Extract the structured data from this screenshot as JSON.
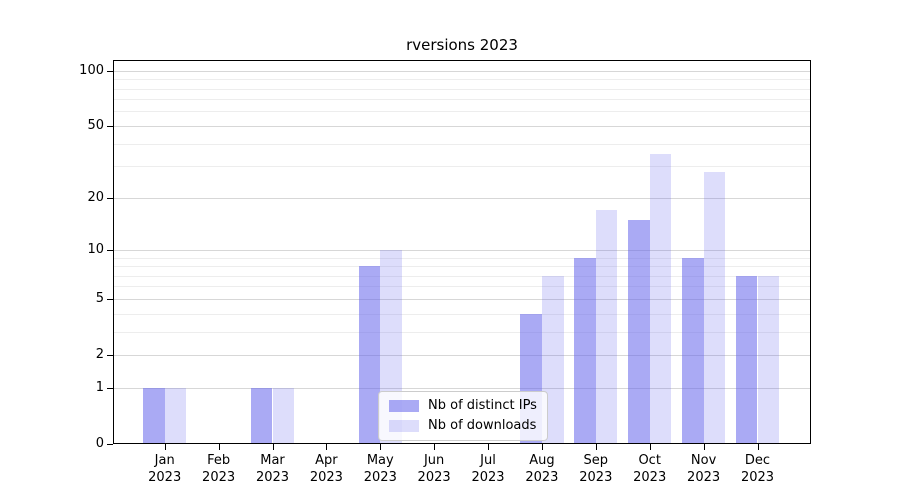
{
  "chart_data": {
    "type": "bar",
    "title": "rversions 2023",
    "categories": [
      "Jan 2023",
      "Feb 2023",
      "Mar 2023",
      "Apr 2023",
      "May 2023",
      "Jun 2023",
      "Jul 2023",
      "Aug 2023",
      "Sep 2023",
      "Oct 2023",
      "Nov 2023",
      "Dec 2023"
    ],
    "category_line1": [
      "Jan",
      "Feb",
      "Mar",
      "Apr",
      "May",
      "Jun",
      "Jul",
      "Aug",
      "Sep",
      "Oct",
      "Nov",
      "Dec"
    ],
    "category_line2": "2023",
    "series": [
      {
        "name": "Nb of distinct IPs",
        "color": "rgba(100,100,235,0.55)",
        "values": [
          1,
          0,
          1,
          0,
          8,
          0,
          0,
          4,
          9,
          15,
          9,
          7
        ]
      },
      {
        "name": "Nb of downloads",
        "color": "rgba(100,100,235,0.22)",
        "values": [
          1,
          0,
          1,
          0,
          10,
          0,
          0,
          7,
          17,
          35,
          28,
          7
        ]
      }
    ],
    "yscale": "log1p",
    "yticks": [
      0,
      1,
      2,
      5,
      10,
      20,
      50,
      100
    ],
    "yticks_minor": [
      3,
      4,
      6,
      7,
      8,
      9,
      30,
      40,
      60,
      70,
      80,
      90
    ],
    "ylim": [
      0,
      114
    ],
    "xlabel": "",
    "ylabel": "",
    "grid": "horizontal",
    "legend_position": "lower center"
  },
  "colors": {
    "bar_base": "#6464eb",
    "grid_major": "#d7d7d7",
    "grid_minor": "#ededed",
    "axis": "#000000",
    "legend_border": "#cccccc",
    "legend_background": "rgba(255,255,255,0.8)"
  }
}
